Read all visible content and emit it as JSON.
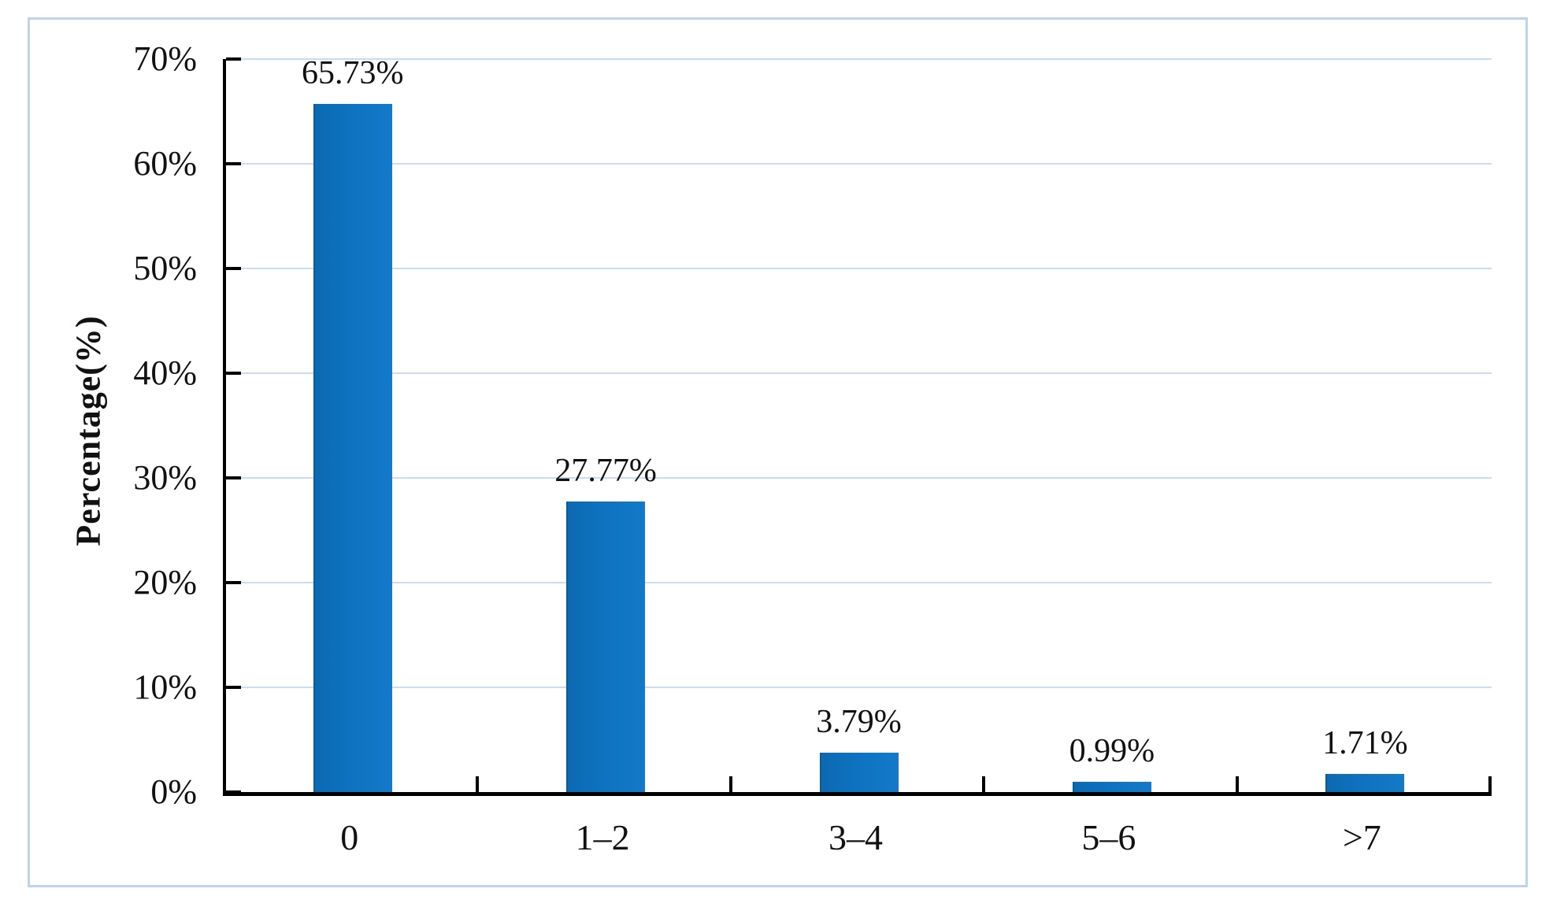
{
  "figure": {
    "frame_border_color": "#bdd5ec",
    "background_color": "#ffffff"
  },
  "chart_data": {
    "type": "bar",
    "categories": [
      "0",
      "1–2",
      "3–4",
      "5–6",
      ">7"
    ],
    "values": [
      65.73,
      27.77,
      3.79,
      0.99,
      1.71
    ],
    "value_labels": [
      "65.73%",
      "27.77%",
      "3.79%",
      "0.99%",
      "1.71%"
    ],
    "xlabel": "",
    "ylabel": "Percentage(%)",
    "ylim": [
      0,
      70
    ],
    "ytick_values": [
      0,
      10,
      20,
      30,
      40,
      50,
      60,
      70
    ],
    "ytick_labels": [
      "0%",
      "10%",
      "20%",
      "30%",
      "40%",
      "50%",
      "60%",
      "70%"
    ],
    "grid": "horizontal gridlines on, inside tick marks",
    "legend_position": "none",
    "bar_color": "#0e72c0",
    "bar_gradient_start": "#0b69b1",
    "bar_gradient_end": "#1479c8",
    "gridline_color": "#c9ddf2",
    "axis_color": "#000000"
  }
}
